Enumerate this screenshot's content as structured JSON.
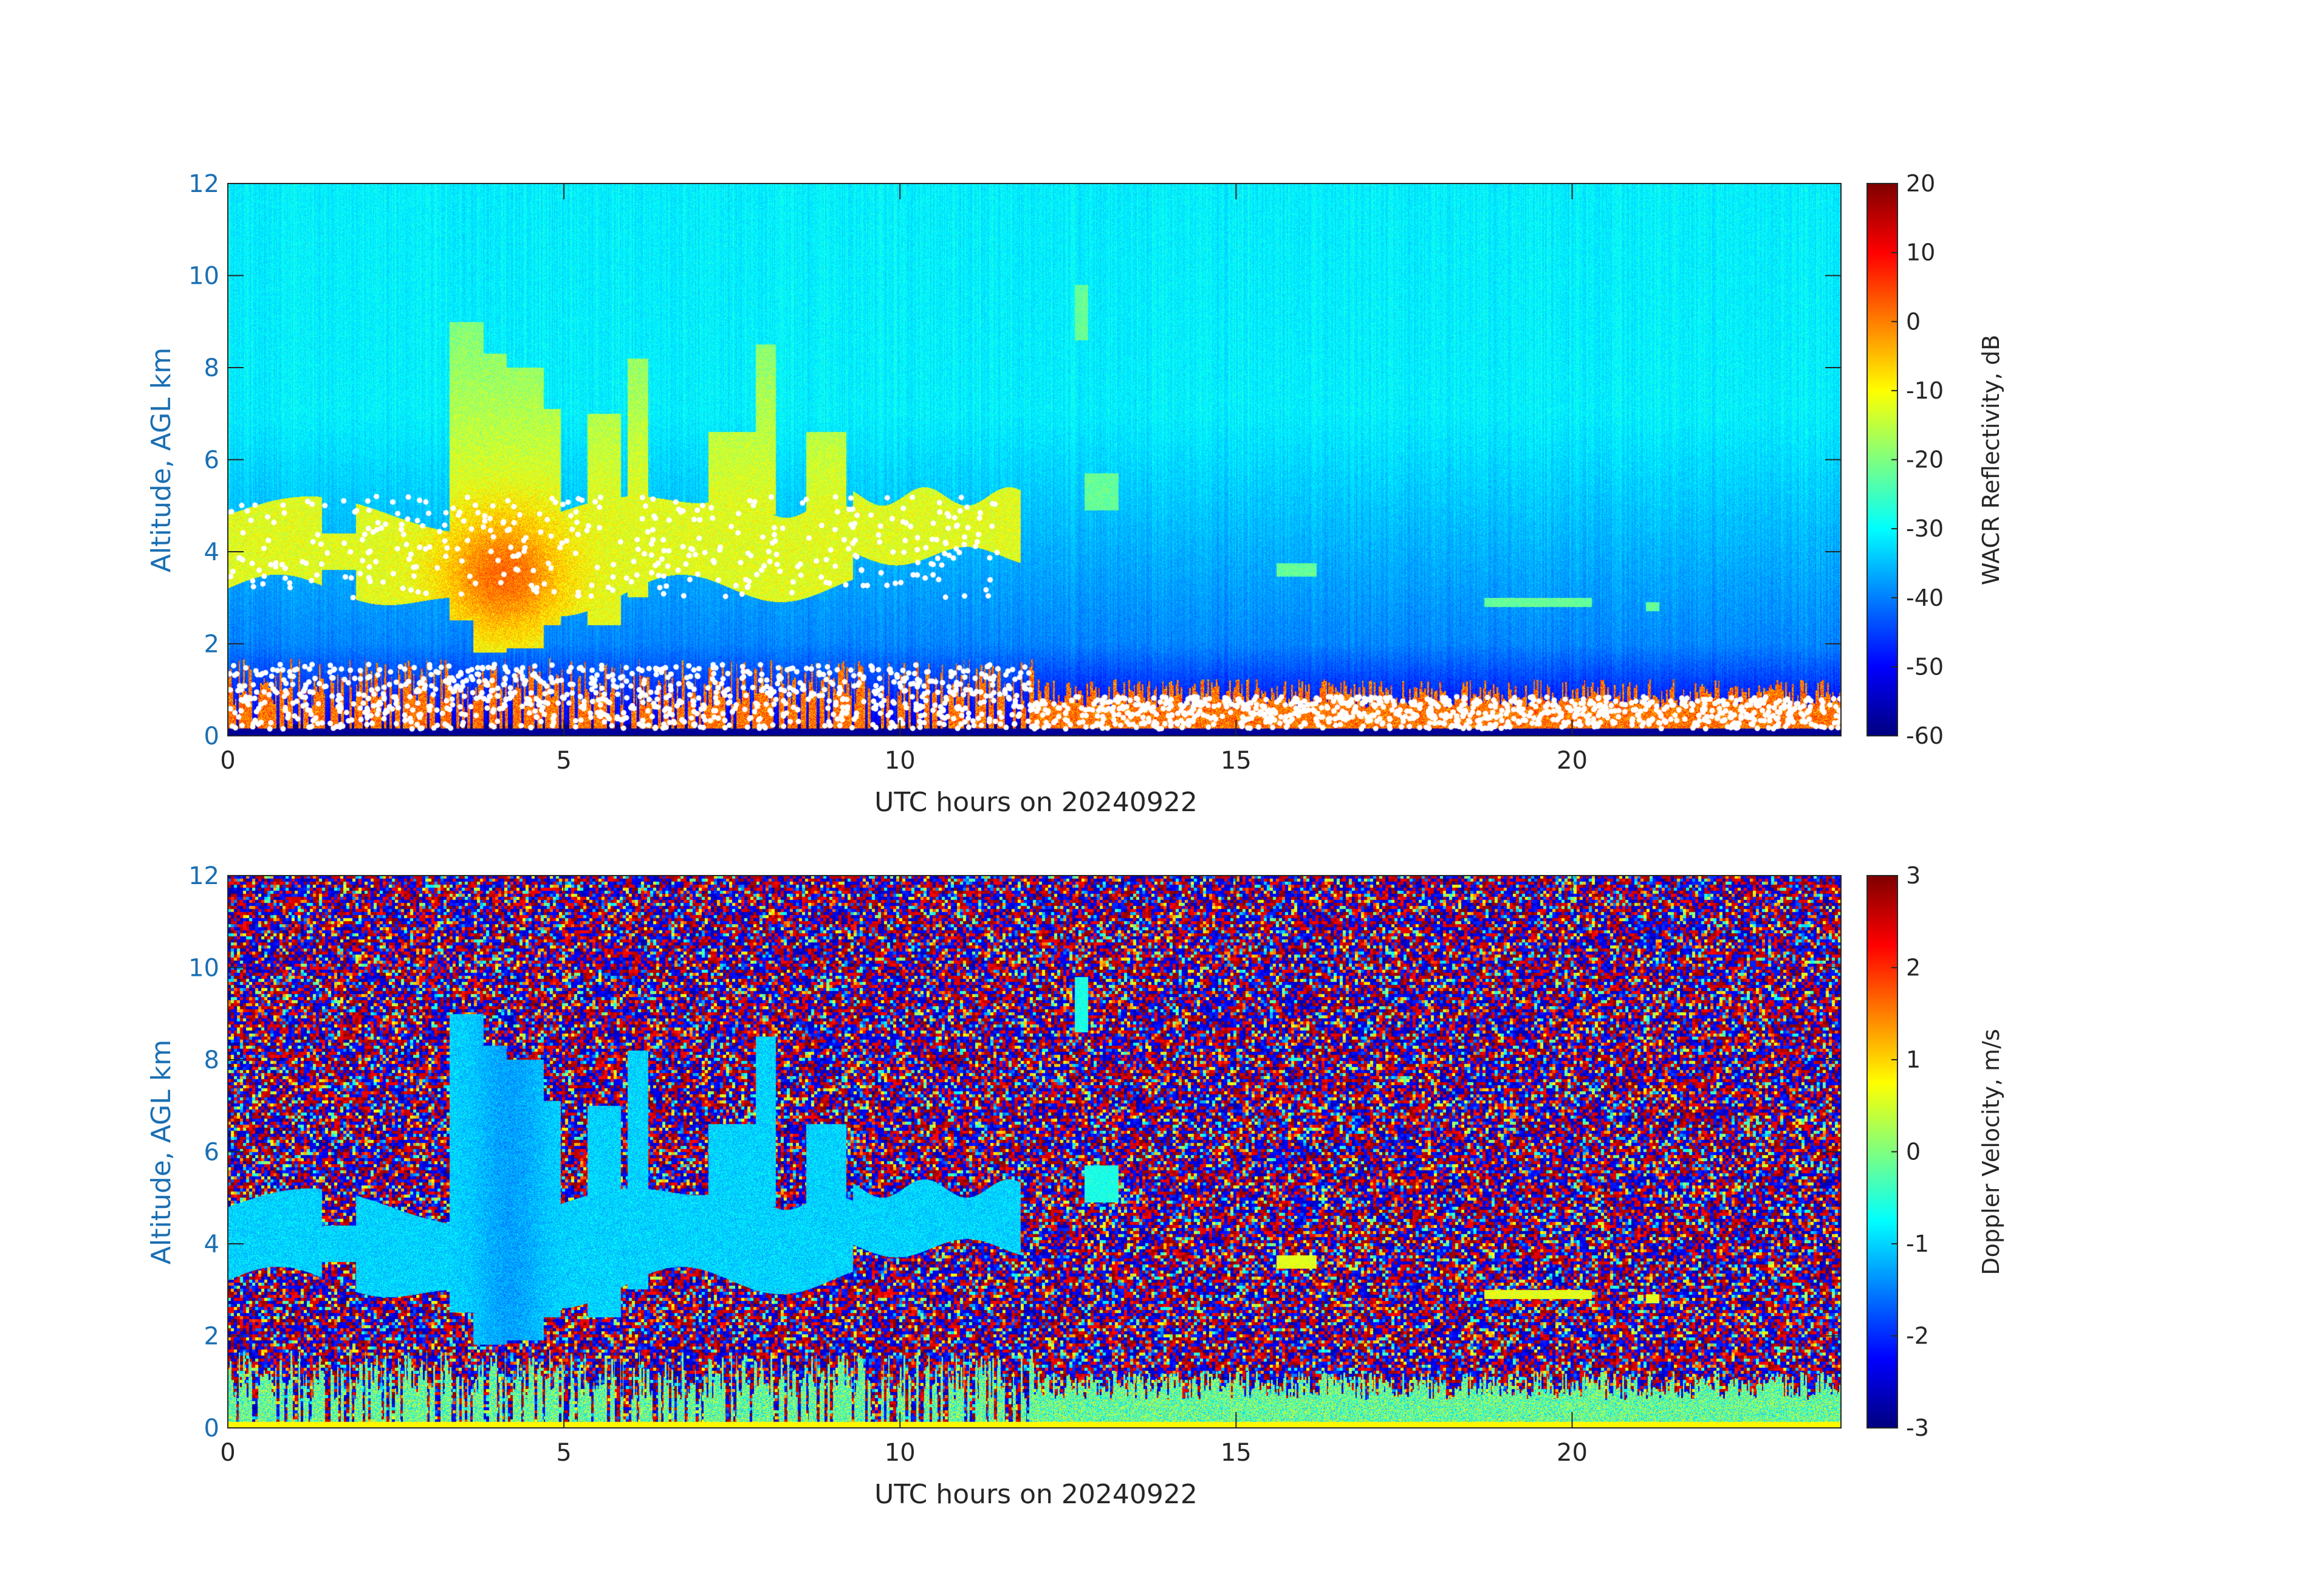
{
  "chart_data": [
    {
      "type": "heatmap",
      "title": "",
      "xlabel": "UTC hours on 20240922",
      "ylabel": "Altitude, AGL km",
      "xlim": [
        0,
        24
      ],
      "ylim": [
        0,
        12
      ],
      "x_ticks": [
        0,
        5,
        10,
        15,
        20
      ],
      "y_ticks": [
        0,
        2,
        4,
        6,
        8,
        10,
        12
      ],
      "colorbar": {
        "label": "WACR Reflectivity, dB",
        "range": [
          -60,
          20
        ],
        "ticks": [
          20,
          10,
          0,
          -10,
          -20,
          -30,
          -40,
          -50,
          -60
        ],
        "colormap": "jet"
      },
      "overlay": "white dots marking cloud base / layer boundaries",
      "features": [
        {
          "name": "low boundary-layer echoes",
          "x_range": [
            0,
            24
          ],
          "alt_km": [
            0,
            1.6
          ],
          "value_db": [
            -10,
            20
          ]
        },
        {
          "name": "mid-level cloud layer",
          "x_range": [
            0,
            11.8
          ],
          "alt_km": [
            2.5,
            5.5
          ],
          "value_db": [
            -20,
            10
          ]
        },
        {
          "name": "precipitation shafts",
          "x_range": [
            3.3,
            9.3
          ],
          "alt_km": [
            1.8,
            9
          ],
          "value_db": [
            -15,
            10
          ]
        },
        {
          "name": "clear air background",
          "x_range": [
            0,
            24
          ],
          "alt_km": [
            2,
            12
          ],
          "value_db": [
            -45,
            -30
          ]
        }
      ],
      "tick_color": "#1a6fb3"
    },
    {
      "type": "heatmap",
      "title": "",
      "xlabel": "UTC hours on 20240922",
      "ylabel": "Altitude, AGL km",
      "xlim": [
        0,
        24
      ],
      "ylim": [
        0,
        12
      ],
      "x_ticks": [
        0,
        5,
        10,
        15,
        20
      ],
      "y_ticks": [
        0,
        2,
        4,
        6,
        8,
        10,
        12
      ],
      "colorbar": {
        "label": "Doppler Velocity, m/s",
        "range": [
          -3,
          3
        ],
        "ticks": [
          3,
          2,
          1,
          0,
          -1,
          -2,
          -3
        ],
        "colormap": "jet"
      },
      "features": [
        {
          "name": "noise background",
          "x_range": [
            0,
            24
          ],
          "alt_km": [
            0,
            12
          ],
          "value_ms": [
            -3,
            3
          ]
        },
        {
          "name": "mid-level cloud layer",
          "x_range": [
            0,
            11.8
          ],
          "alt_km": [
            2.5,
            5.5
          ],
          "value_ms": [
            -1.5,
            -0.5
          ]
        },
        {
          "name": "precipitation shafts",
          "x_range": [
            3.3,
            9.3
          ],
          "alt_km": [
            1.8,
            9
          ],
          "value_ms": [
            -1.5,
            -0.5
          ]
        },
        {
          "name": "boundary-layer echoes",
          "x_range": [
            0,
            24
          ],
          "alt_km": [
            0,
            1.5
          ],
          "value_ms": [
            -1,
            1
          ]
        }
      ],
      "tick_color": "#1a6fb3"
    }
  ]
}
